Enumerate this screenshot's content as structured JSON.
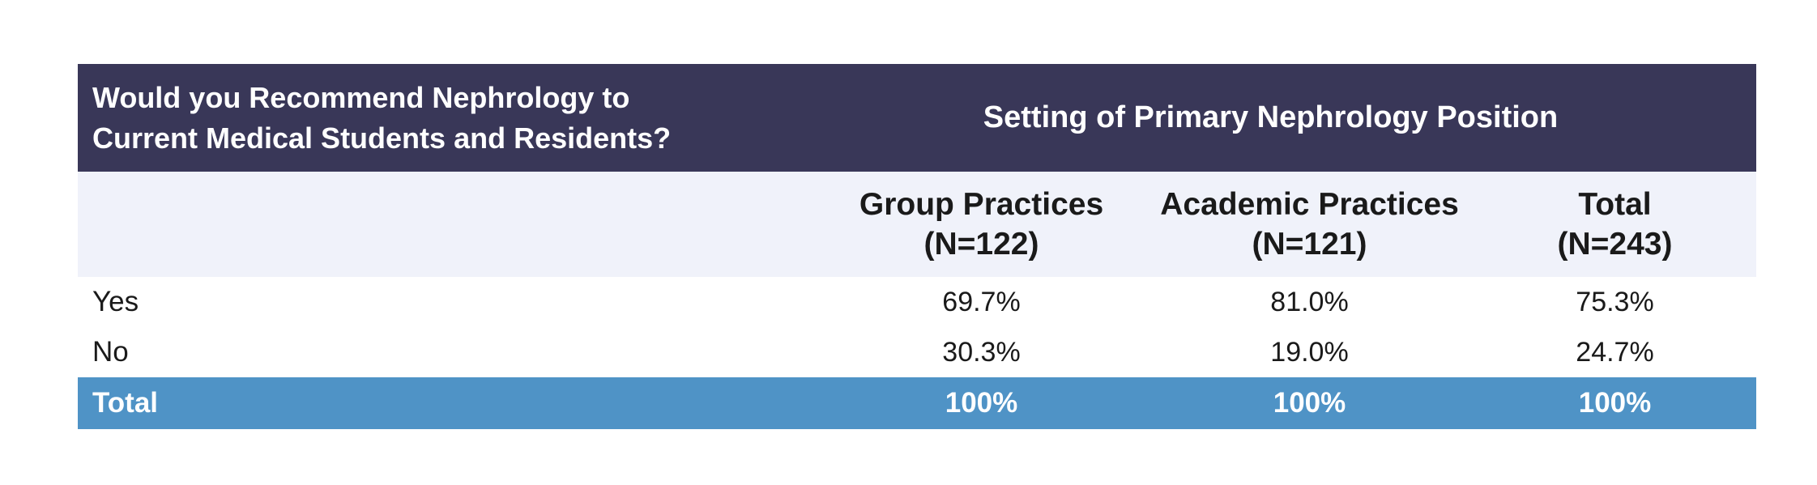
{
  "chart_data": {
    "type": "table",
    "question": "Would you Recommend Nephrology to Current Medical Students and Residents?",
    "question_lines": [
      "Would you Recommend Nephrology to",
      "Current Medical Students and Residents?"
    ],
    "spanning_header": "Setting of Primary Nephrology Position",
    "columns": [
      {
        "name": "Group Practices",
        "n": "(N=122)"
      },
      {
        "name": "Academic Practices",
        "n": "(N=121)"
      },
      {
        "name": "Total",
        "n": "(N=243)"
      }
    ],
    "rows": [
      {
        "label": "Yes",
        "values": [
          "69.7%",
          "81.0%",
          "75.3%"
        ]
      },
      {
        "label": "No",
        "values": [
          "30.3%",
          "19.0%",
          "24.7%"
        ]
      }
    ],
    "total_row": {
      "label": "Total",
      "values": [
        "100%",
        "100%",
        "100%"
      ]
    }
  },
  "colors": {
    "header_bg": "#393758",
    "subheader_bg": "#f0f2fa",
    "total_bg": "#4f93c6"
  }
}
